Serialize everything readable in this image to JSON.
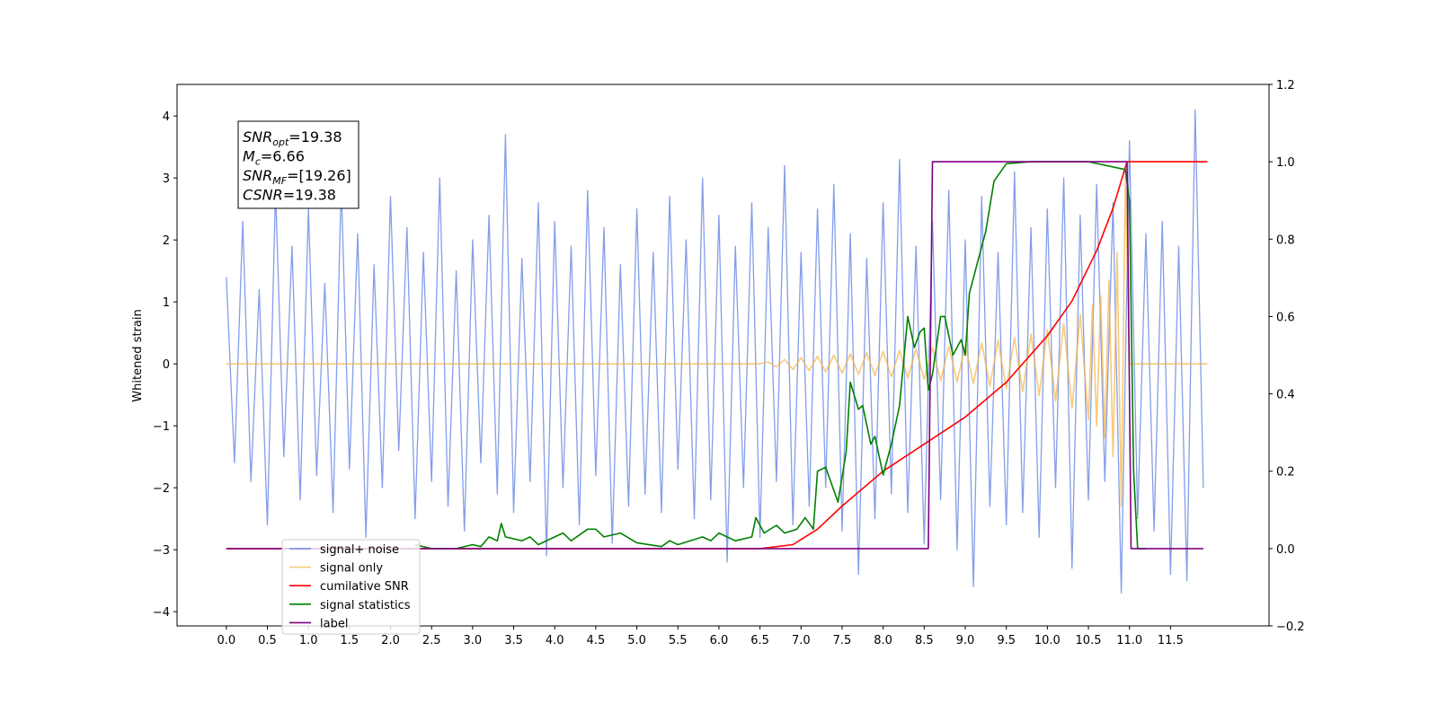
{
  "chart_data": {
    "type": "line",
    "ylabel": "Whitened strain",
    "xlim": [
      -0.6,
      12.7
    ],
    "ylim": [
      -4.23,
      4.51
    ],
    "y2lim": [
      -0.2,
      1.2
    ],
    "xticks": [
      {
        "value": 0,
        "label": "0.0"
      },
      0.5,
      {
        "value": 1,
        "label": "1.0"
      },
      1.5,
      {
        "value": 2,
        "label": "2.0"
      },
      2.5,
      {
        "value": 3,
        "label": "3.0"
      },
      3.5,
      {
        "value": 4,
        "label": "4.0"
      },
      4.5,
      {
        "value": 5,
        "label": "5.0"
      },
      5.5,
      {
        "value": 6,
        "label": "6.0"
      },
      6.5,
      {
        "value": 7,
        "label": "7.0"
      },
      7.5,
      {
        "value": 8,
        "label": "8.0"
      },
      8.5,
      {
        "value": 9,
        "label": "9.0"
      },
      9.5,
      {
        "value": 10,
        "label": "10.0"
      },
      10.5,
      {
        "value": 11,
        "label": "11.0"
      },
      11.5
    ],
    "yticks": [
      {
        "value": -4,
        "label": "−4"
      },
      {
        "value": -3,
        "label": "−3"
      },
      {
        "value": -2,
        "label": "−2"
      },
      {
        "value": -1,
        "label": "−1"
      },
      0,
      1,
      2,
      3,
      4
    ],
    "y2ticks": [
      {
        "value": -0.2,
        "label": "−0.2"
      },
      {
        "value": 0,
        "label": "0.0"
      },
      0.2,
      0.4,
      0.6,
      0.8,
      {
        "value": 1,
        "label": "1.0"
      },
      1.2
    ],
    "legend": "lower left",
    "annotations": [
      {
        "label": "SNR",
        "sub": "opt",
        "text": "=19.38"
      },
      {
        "label": "M",
        "sub": "c",
        "text": "=6.66"
      },
      {
        "label": "SNR",
        "sub": "MF",
        "text": "=[19.26]"
      },
      {
        "label": "CSNR",
        "text": "=19.38"
      }
    ],
    "series": [
      {
        "name": "signal+ noise",
        "color": "#6f8ce6",
        "x": [
          0,
          0.1,
          0.2,
          0.3,
          0.4,
          0.5,
          0.6,
          0.7,
          0.8,
          0.9,
          1,
          1.1,
          1.2,
          1.3,
          1.4,
          1.5,
          1.6,
          1.7,
          1.8,
          1.9,
          2,
          2.1,
          2.2,
          2.3,
          2.4,
          2.5,
          2.6,
          2.7,
          2.8,
          2.9,
          3,
          3.1,
          3.2,
          3.3,
          3.4,
          3.5,
          3.6,
          3.7,
          3.8,
          3.9,
          4,
          4.1,
          4.2,
          4.3,
          4.4,
          4.5,
          4.6,
          4.7,
          4.8,
          4.9,
          5,
          5.1,
          5.2,
          5.3,
          5.4,
          5.5,
          5.6,
          5.7,
          5.8,
          5.9,
          6,
          6.1,
          6.2,
          6.3,
          6.4,
          6.5,
          6.6,
          6.7,
          6.8,
          6.9,
          7,
          7.1,
          7.2,
          7.3,
          7.4,
          7.5,
          7.6,
          7.7,
          7.8,
          7.9,
          8,
          8.1,
          8.2,
          8.3,
          8.4,
          8.5,
          8.6,
          8.7,
          8.8,
          8.9,
          9,
          9.1,
          9.2,
          9.3,
          9.4,
          9.5,
          9.6,
          9.7,
          9.8,
          9.9,
          10,
          10.1,
          10.2,
          10.3,
          10.4,
          10.5,
          10.6,
          10.7,
          10.8,
          10.9,
          11,
          11.1,
          11.2,
          11.3,
          11.4,
          11.5,
          11.6,
          11.7,
          11.8,
          11.9
        ],
        "values": [
          1.4,
          -1.6,
          2.3,
          -1.9,
          1.2,
          -2.6,
          2.8,
          -1.5,
          1.9,
          -2.2,
          2.5,
          -1.8,
          1.3,
          -2.4,
          2.9,
          -1.7,
          2.1,
          -2.8,
          1.6,
          -2.0,
          2.7,
          -1.4,
          2.2,
          -2.5,
          1.8,
          -1.9,
          3.0,
          -2.3,
          1.5,
          -2.7,
          2.0,
          -1.6,
          2.4,
          -2.1,
          3.7,
          -2.4,
          1.7,
          -1.9,
          2.6,
          -3.1,
          2.3,
          -2.0,
          1.9,
          -2.6,
          2.8,
          -1.8,
          2.2,
          -2.9,
          1.6,
          -2.3,
          2.5,
          -2.1,
          1.8,
          -2.4,
          2.7,
          -1.7,
          2.0,
          -2.5,
          3.0,
          -2.2,
          2.4,
          -3.2,
          1.9,
          -2.0,
          2.6,
          -2.8,
          2.2,
          -1.9,
          3.2,
          -2.6,
          1.8,
          -2.3,
          2.5,
          -2.0,
          2.9,
          -2.7,
          2.1,
          -3.4,
          1.7,
          -2.5,
          2.6,
          -2.1,
          3.3,
          -2.4,
          1.9,
          -2.9,
          2.3,
          -2.2,
          2.8,
          -3.0,
          2.0,
          -3.6,
          2.7,
          -2.3,
          1.8,
          -2.6,
          3.1,
          -2.4,
          2.2,
          -2.8,
          2.5,
          -2.0,
          3.0,
          -3.3,
          2.4,
          -2.2,
          2.9,
          -1.9,
          2.6,
          -3.7,
          3.6,
          -2.5,
          2.1,
          -2.7,
          2.3,
          -3.4,
          1.9,
          -3.5,
          4.1,
          -2.0
        ]
      },
      {
        "name": "signal only",
        "color": "#f5b342",
        "x": [
          0,
          6.5,
          6.6,
          6.7,
          6.8,
          6.9,
          7,
          7.1,
          7.2,
          7.3,
          7.4,
          7.5,
          7.6,
          7.7,
          7.8,
          7.9,
          8,
          8.1,
          8.2,
          8.3,
          8.4,
          8.5,
          8.6,
          8.7,
          8.8,
          8.9,
          9,
          9.1,
          9.2,
          9.3,
          9.4,
          9.5,
          9.6,
          9.7,
          9.8,
          9.9,
          10,
          10.1,
          10.2,
          10.3,
          10.4,
          10.5,
          10.55,
          10.6,
          10.65,
          10.7,
          10.75,
          10.8,
          10.85,
          10.9,
          10.95,
          11,
          11.95
        ],
        "values": [
          0,
          0,
          0.03,
          -0.05,
          0.07,
          -0.09,
          0.1,
          -0.11,
          0.12,
          -0.13,
          0.14,
          -0.15,
          0.16,
          -0.17,
          0.18,
          -0.19,
          0.2,
          -0.21,
          0.22,
          -0.23,
          0.24,
          -0.25,
          0.26,
          -0.27,
          0.28,
          -0.29,
          0.3,
          -0.32,
          0.34,
          -0.36,
          0.38,
          -0.4,
          0.42,
          -0.45,
          0.48,
          -0.51,
          0.55,
          -0.6,
          0.65,
          -0.72,
          0.8,
          -0.9,
          0.95,
          -1.0,
          1.1,
          -1.2,
          1.35,
          -1.5,
          1.8,
          -2.3,
          3.0,
          0,
          0
        ]
      },
      {
        "name": "cumilative SNR",
        "color": "#ff0000",
        "axis": "y2",
        "x": [
          0,
          6.5,
          6.9,
          7.2,
          7.5,
          8,
          8.5,
          9,
          9.5,
          10,
          10.3,
          10.6,
          10.8,
          10.97,
          11.95
        ],
        "values": [
          0,
          0,
          0.01,
          0.05,
          0.11,
          0.2,
          0.27,
          0.34,
          0.43,
          0.55,
          0.64,
          0.77,
          0.88,
          1,
          1
        ]
      },
      {
        "name": "signal statistics",
        "color": "#008000",
        "axis": "y2",
        "x": [
          2.3,
          2.5,
          2.8,
          3,
          3.1,
          3.2,
          3.3,
          3.35,
          3.4,
          3.6,
          3.7,
          3.8,
          4,
          4.1,
          4.2,
          4.4,
          4.5,
          4.6,
          4.8,
          5,
          5.3,
          5.4,
          5.5,
          5.8,
          5.9,
          6,
          6.2,
          6.4,
          6.45,
          6.55,
          6.7,
          6.8,
          6.95,
          7.05,
          7.15,
          7.2,
          7.3,
          7.45,
          7.55,
          7.6,
          7.7,
          7.75,
          7.85,
          7.9,
          8,
          8.1,
          8.2,
          8.3,
          8.38,
          8.45,
          8.5,
          8.55,
          8.6,
          8.7,
          8.75,
          8.85,
          8.95,
          9,
          9.05,
          9.15,
          9.25,
          9.35,
          9.5,
          9.8,
          10.5,
          10.95,
          11,
          11.05,
          11.1,
          11.2
        ],
        "values": [
          0.01,
          0,
          0,
          0.01,
          0.005,
          0.03,
          0.02,
          0.065,
          0.03,
          0.02,
          0.03,
          0.01,
          0.03,
          0.04,
          0.02,
          0.05,
          0.05,
          0.03,
          0.04,
          0.015,
          0.005,
          0.02,
          0.01,
          0.03,
          0.02,
          0.04,
          0.02,
          0.03,
          0.08,
          0.04,
          0.06,
          0.04,
          0.05,
          0.08,
          0.05,
          0.2,
          0.21,
          0.12,
          0.25,
          0.43,
          0.36,
          0.37,
          0.27,
          0.29,
          0.19,
          0.27,
          0.37,
          0.6,
          0.52,
          0.56,
          0.57,
          0.41,
          0.45,
          0.6,
          0.6,
          0.5,
          0.54,
          0.5,
          0.66,
          0.74,
          0.82,
          0.95,
          0.995,
          1,
          1,
          0.98,
          0.9,
          0.2,
          0,
          0
        ]
      },
      {
        "name": "label",
        "color": "#800080",
        "axis": "y2",
        "x": [
          0,
          8.55,
          8.6,
          10.97,
          11.02,
          11.9
        ],
        "values": [
          0,
          0,
          1,
          1,
          0,
          0
        ]
      }
    ]
  }
}
